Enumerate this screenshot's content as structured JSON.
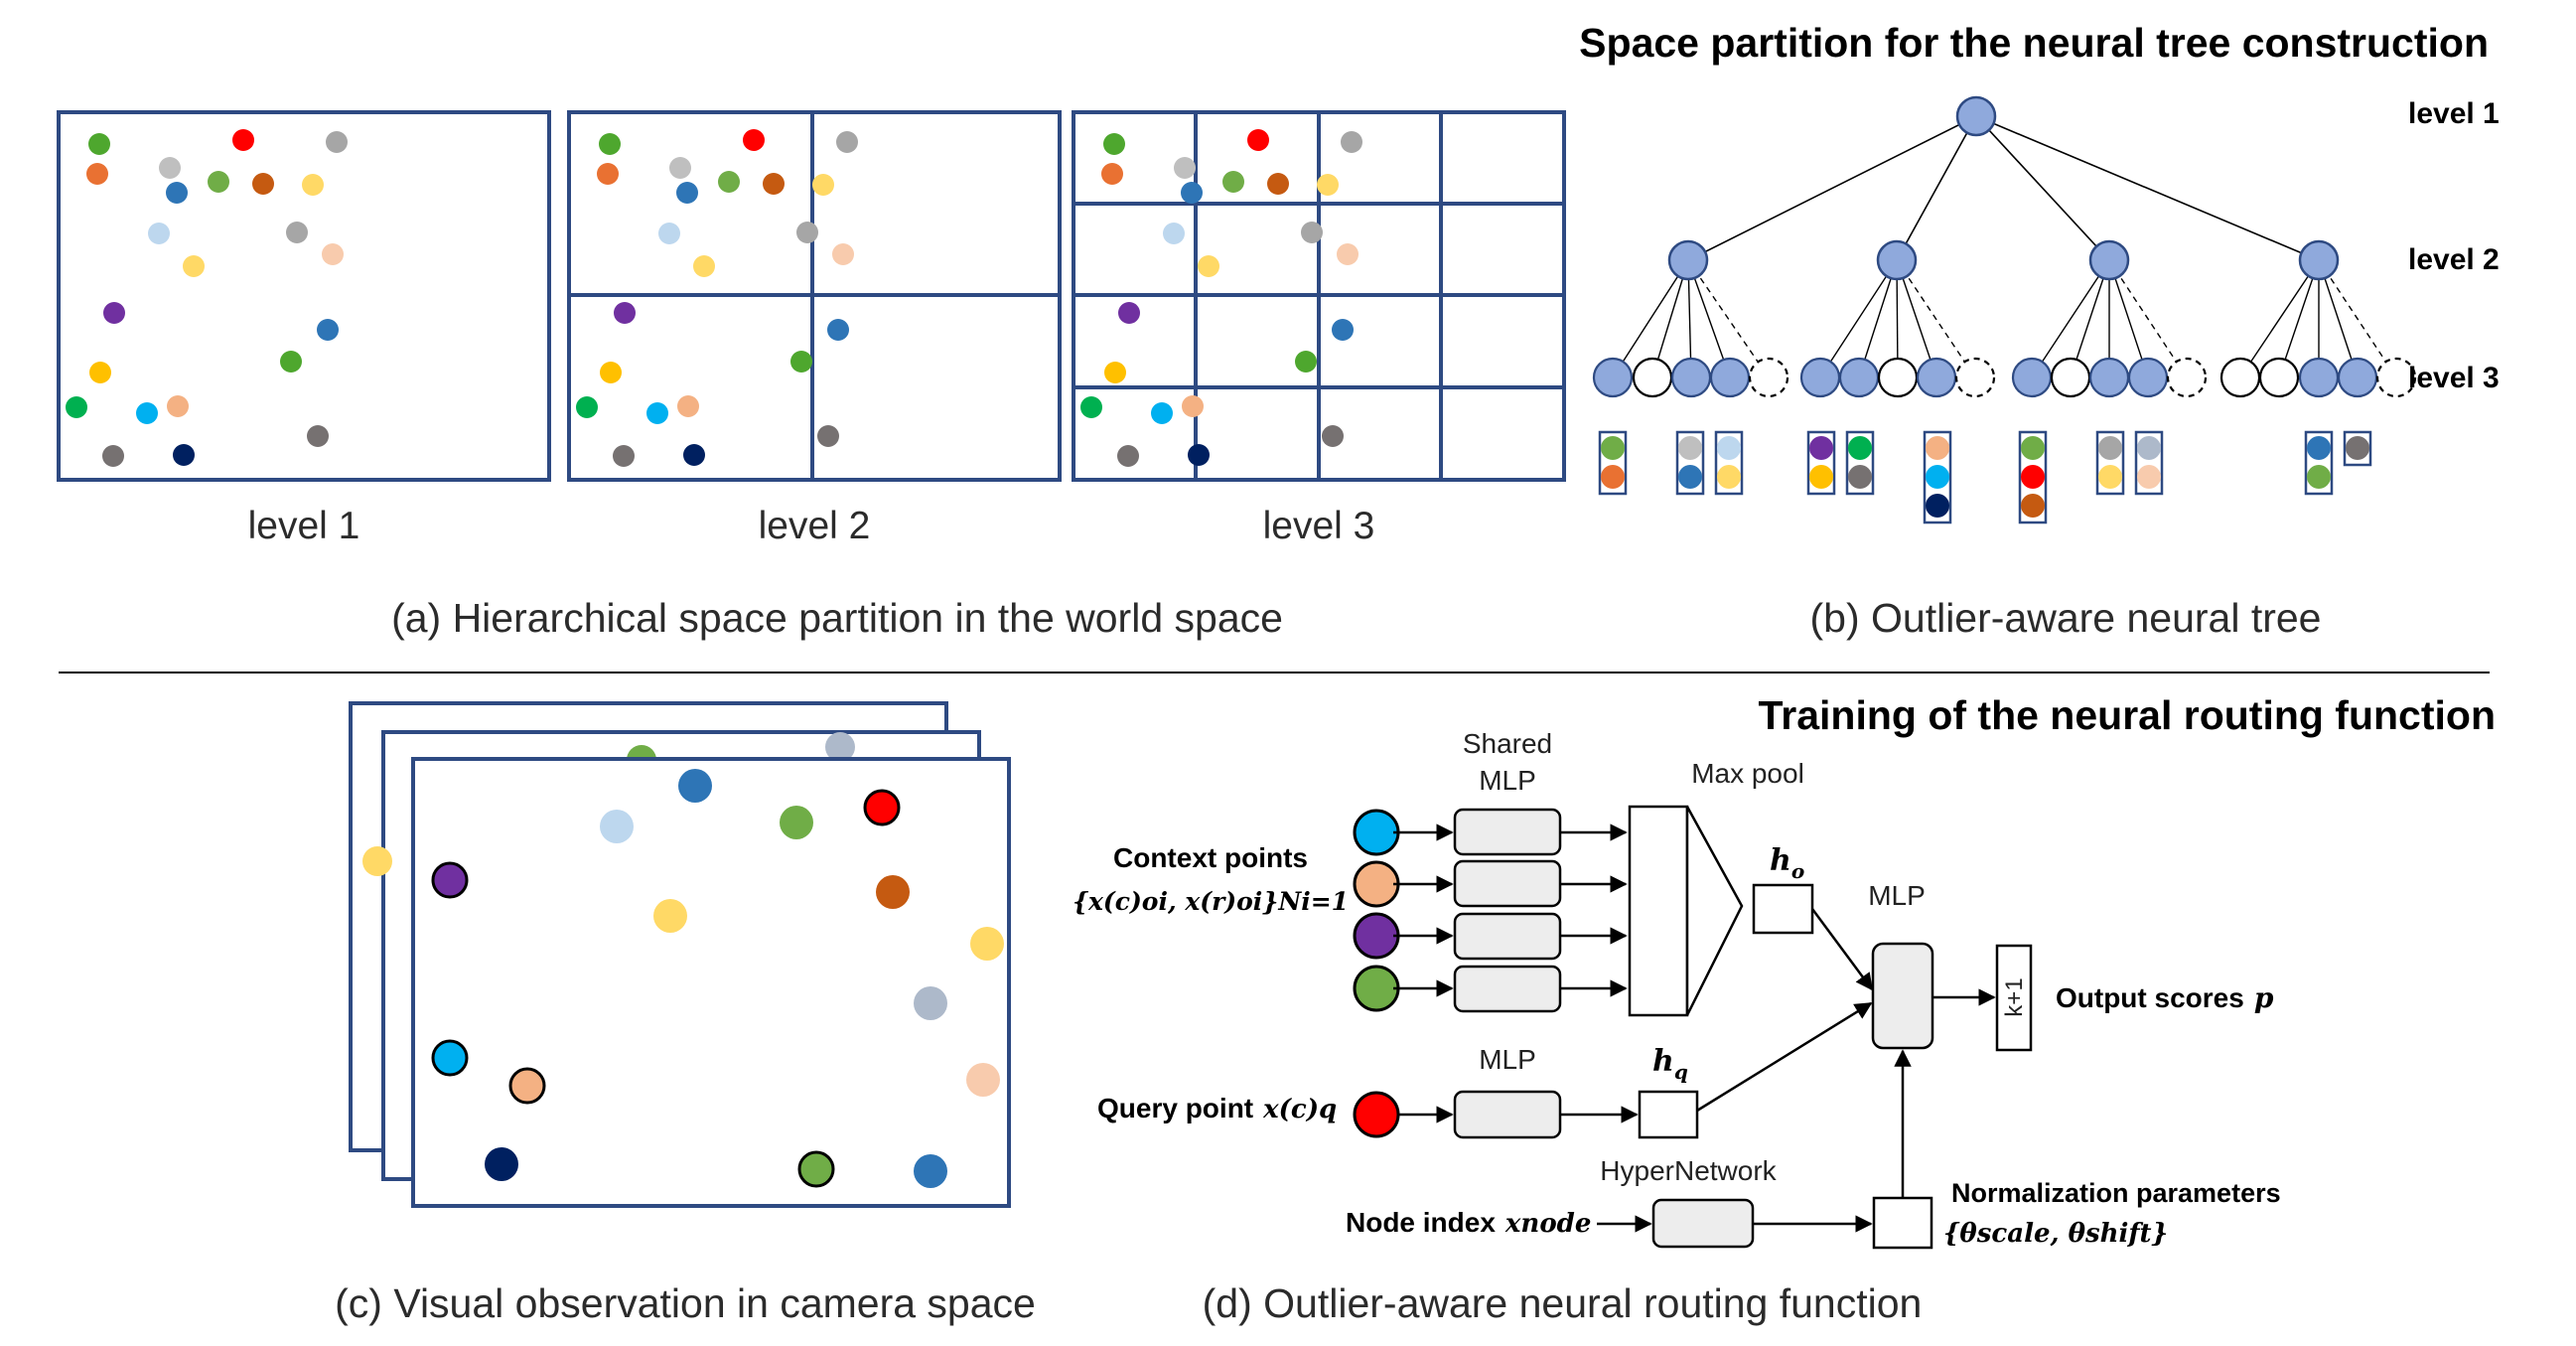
{
  "partition_panel": {
    "title": "Space partition for the neural tree construction",
    "panel_labels": [
      "level 1",
      "level 2",
      "level 3"
    ],
    "caption": "(a) Hierarchical space partition in the world space"
  },
  "tree_panel": {
    "level_labels": [
      "level 1",
      "level 2",
      "level 3"
    ],
    "caption": "(b) Outlier-aware neural tree"
  },
  "camera_panel": {
    "caption": "(c) Visual observation in camera space"
  },
  "routing_panel": {
    "title": "Training of the neural routing function",
    "shared_mlp_label_1": "Shared",
    "shared_mlp_label_2": "MLP",
    "maxpool_label": "Max pool",
    "ho_label": "h",
    "ho_sub": "o",
    "hq_label": "h",
    "hq_sub": "q",
    "mlp_label_query": "MLP",
    "mlp_label_main": "MLP",
    "hypernetwork_label": "HyperNetwork",
    "context_label": "Context points",
    "context_formula": "{x(c)oi, x(r)oi}Ni=1",
    "query_label": "Query point",
    "query_formula": "x(c)q",
    "node_index_label": "Node index",
    "node_index_formula": "xnode",
    "output_box_label": "k+1",
    "output_label": "Output scores",
    "output_symbol": "p",
    "norm_label": "Normalization parameters",
    "norm_formula": "{θscale, θshift}",
    "caption": "(d) Outlier-aware neural routing function"
  },
  "colors": {
    "panel_fill": "#dae3f3",
    "partition_border": "#2e4a82",
    "node_fill": "#8fa9dc",
    "node_stroke": "#2e4a82",
    "box_fill": "#ededed",
    "point_green": "#4ea72e",
    "point_orange": "#e97132",
    "point_lightgray": "#bfbfbf",
    "point_blue": "#2e75b6",
    "point_red": "#ff0000",
    "point_olive": "#70ad47",
    "point_rust": "#c55a11",
    "point_yellow": "#ffd966",
    "point_gray": "#a6a6a6",
    "point_lightblue": "#bdd7ee",
    "point_silver": "#adb9ca",
    "point_peach": "#f8cbad",
    "point_purple": "#7030a0",
    "point_gold": "#ffc000",
    "point_green2": "#00b050",
    "point_cyan": "#00b0f0",
    "point_salmon": "#f4b183",
    "point_darkgray": "#767171",
    "point_navy": "#002060"
  }
}
